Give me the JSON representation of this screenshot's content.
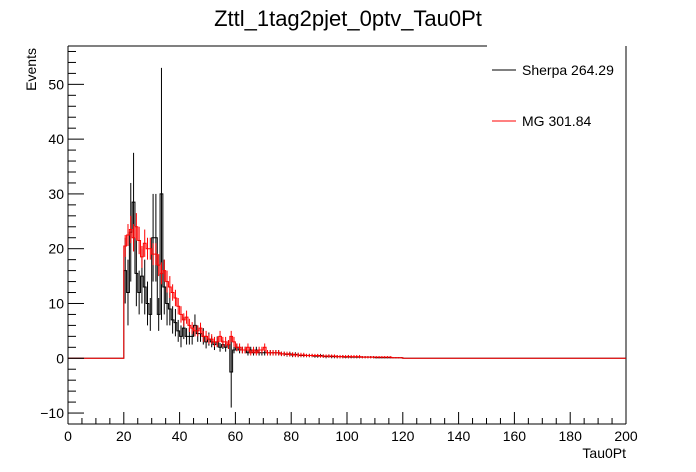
{
  "chart_data": {
    "type": "line",
    "title": "Zttl_1tag2pjet_0ptv_Tau0Pt",
    "xlabel": "Tau0Pt",
    "ylabel": "Events",
    "xlim": [
      0,
      200
    ],
    "ylim": [
      -12,
      57
    ],
    "xticks": [
      "0",
      "20",
      "40",
      "60",
      "80",
      "100",
      "120",
      "140",
      "160",
      "180",
      "200"
    ],
    "yticks": [
      "−10",
      "0",
      "10",
      "20",
      "30",
      "40",
      "50"
    ],
    "bin_width": 1,
    "legend_position": "top-right",
    "series": [
      {
        "name": "Sherpa 264.29",
        "color": "#000000",
        "x_start": 20,
        "values": [
          16,
          12,
          23,
          28.5,
          15.5,
          12,
          15,
          13,
          10,
          8,
          22,
          11,
          8,
          30,
          13,
          10,
          9,
          7,
          6.5,
          5,
          4,
          5.5,
          4,
          4,
          4,
          6,
          4.5,
          4.5,
          4,
          3,
          3.5,
          3,
          2.5,
          3,
          2,
          2.5,
          2,
          2.5,
          2,
          1.5,
          2,
          1.5,
          1.5,
          1.5,
          1,
          1.5,
          1,
          1.5,
          1,
          1,
          1,
          1,
          1,
          1,
          1,
          1,
          0.8,
          0.8,
          0.7,
          0.8,
          0.6,
          0.7,
          0.6,
          0.5,
          0.5,
          0.5,
          0.5,
          0.5,
          0.4,
          0.4,
          0.5,
          0.4,
          0.3,
          0.4,
          0.3,
          0.3,
          0.3,
          0.3,
          0.3,
          0.2,
          0.3,
          0.2,
          0.2,
          0.2,
          0.2,
          0.2,
          0.2,
          0.2,
          0.2,
          0.2,
          0.1,
          0.1,
          0.1,
          0.1,
          0.1,
          0.1,
          0.1,
          0.1,
          0.1,
          0.1
        ],
        "errors": [
          6,
          6,
          9,
          9,
          6,
          4,
          5,
          5,
          4,
          3,
          8,
          4,
          3,
          23,
          5,
          4,
          3,
          2.5,
          2.5,
          2,
          2,
          2,
          1.5,
          1.5,
          1.5,
          2,
          1.5,
          1.5,
          1.5,
          1.2,
          1.2,
          1,
          1,
          1,
          0.8,
          0.8,
          0.8,
          0.8,
          0.7,
          0.6,
          0.7,
          0.6,
          0.6,
          0.6,
          0.5,
          0.6,
          0.5,
          0.6,
          0.5,
          0.5,
          0.5,
          0.5,
          0.5,
          0.5,
          0.5,
          0.5,
          0.4,
          0.4,
          0.4,
          0.4,
          0.4,
          0.4,
          0.4,
          0.3,
          0.3,
          0.3,
          0.3,
          0.3,
          0.3,
          0.3,
          0.3,
          0.3,
          0.3,
          0.3,
          0.3,
          0.3,
          0.3,
          0.3,
          0.3,
          0.2,
          0.3,
          0.2,
          0.2,
          0.2,
          0.2,
          0.2,
          0.2,
          0.2,
          0.2,
          0.2,
          0.1,
          0.1,
          0.1,
          0.1,
          0.1,
          0.1,
          0.1,
          0.1,
          0.1,
          0.1
        ],
        "spikes": [
          {
            "x": 58,
            "value": -2.5,
            "error": 6.5
          },
          {
            "x": 31,
            "value": 22,
            "error": 8
          }
        ]
      },
      {
        "name": "MG 301.84",
        "color": "#ff0000",
        "x_start": 20,
        "values": [
          20.5,
          22.5,
          23.5,
          22,
          24,
          21.5,
          18.5,
          21,
          20,
          20,
          19,
          19,
          17,
          15.5,
          16,
          14,
          13,
          12,
          11,
          9.5,
          8,
          7,
          7.5,
          6,
          5.5,
          5,
          5,
          5.5,
          4,
          4,
          3.5,
          3.5,
          3,
          3,
          4,
          3,
          3,
          2.5,
          4,
          3,
          2,
          2,
          1.5,
          1.5,
          2,
          1,
          1.5,
          1,
          1.5,
          1.5,
          2,
          1,
          1,
          1,
          1,
          1,
          0.8,
          0.8,
          0.8,
          0.7,
          0.7,
          0.6,
          0.6,
          0.6,
          0.6,
          0.5,
          0.5,
          0.5,
          0.5,
          0.5,
          0.4,
          0.4,
          0.4,
          0.4,
          0.4,
          0.4,
          0.3,
          0.3,
          0.3,
          0.3,
          0.3,
          0.3,
          0.3,
          0.3,
          0.3,
          0.2,
          0.2,
          0.2,
          0.2,
          0.2,
          0.2,
          0.2,
          0.2,
          0.2,
          0.2,
          0.2,
          0.1,
          0.1,
          0.1,
          0.1
        ],
        "errors": [
          2,
          2,
          2.5,
          2.5,
          2.5,
          2.5,
          2,
          2.5,
          2,
          2,
          2,
          2,
          2,
          2,
          2,
          2,
          2,
          1.5,
          1.5,
          1.5,
          1.5,
          1.2,
          1.2,
          1.2,
          1.1,
          1,
          1,
          1,
          1,
          1,
          0.9,
          0.9,
          0.9,
          0.9,
          1,
          0.9,
          0.9,
          0.8,
          1,
          0.9,
          0.7,
          0.7,
          0.6,
          0.6,
          0.7,
          0.5,
          0.6,
          0.5,
          0.6,
          0.6,
          0.7,
          0.5,
          0.5,
          0.5,
          0.5,
          0.5,
          0.4,
          0.4,
          0.4,
          0.4,
          0.4,
          0.4,
          0.4,
          0.4,
          0.4,
          0.3,
          0.3,
          0.3,
          0.3,
          0.3,
          0.3,
          0.3,
          0.3,
          0.3,
          0.3,
          0.3,
          0.3,
          0.3,
          0.3,
          0.3,
          0.3,
          0.3,
          0.3,
          0.3,
          0.3,
          0.2,
          0.2,
          0.2,
          0.2,
          0.2,
          0.2,
          0.2,
          0.2,
          0.2,
          0.2,
          0.2,
          0.1,
          0.1,
          0.1,
          0.1
        ]
      }
    ]
  }
}
